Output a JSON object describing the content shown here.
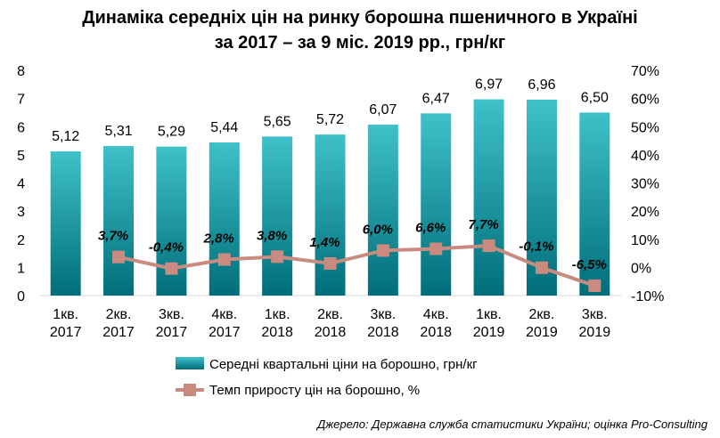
{
  "title_line1": "Динаміка середніх цін на ринку борошна пшеничного в Україні",
  "title_line2": "за 2017 – за 9 міс. 2019 рр., грн/кг",
  "source": "Джерело: Державна служба статистики України; оцінка Pro-Consulting",
  "colors": {
    "bar_top": "#3fc1c9",
    "bar_bottom": "#006e7a",
    "line": "#c98a80",
    "marker": "#c98a80"
  },
  "chart_data": {
    "type": "bar",
    "categories": [
      "1кв. 2017",
      "2кв. 2017",
      "3кв. 2017",
      "4кв. 2017",
      "1кв. 2018",
      "2кв. 2018",
      "3кв. 2018",
      "4кв. 2018",
      "1кв. 2019",
      "2кв. 2019",
      "3кв. 2019"
    ],
    "category_lines": [
      [
        "1кв.",
        "2017"
      ],
      [
        "2кв.",
        "2017"
      ],
      [
        "3кв.",
        "2017"
      ],
      [
        "4кв.",
        "2017"
      ],
      [
        "1кв.",
        "2018"
      ],
      [
        "2кв.",
        "2018"
      ],
      [
        "3кв.",
        "2018"
      ],
      [
        "4кв.",
        "2018"
      ],
      [
        "1кв.",
        "2019"
      ],
      [
        "2кв.",
        "2019"
      ],
      [
        "3кв.",
        "2019"
      ]
    ],
    "series": [
      {
        "name": "Середні квартальні ціни на борошно, грн/кг",
        "type": "bar",
        "axis": "left",
        "values": [
          5.12,
          5.31,
          5.29,
          5.44,
          5.65,
          5.72,
          6.07,
          6.47,
          6.97,
          6.96,
          6.5
        ],
        "labels": [
          "5,12",
          "5,31",
          "5,29",
          "5,44",
          "5,65",
          "5,72",
          "6,07",
          "6,47",
          "6,97",
          "6,96",
          "6,50"
        ]
      },
      {
        "name": "Темп приросту цін на борошно, %",
        "type": "line",
        "axis": "right",
        "values": [
          null,
          3.7,
          -0.4,
          2.8,
          3.8,
          1.4,
          6.0,
          6.6,
          7.7,
          -0.1,
          -6.5
        ],
        "labels": [
          "",
          "3,7%",
          "-0,4%",
          "2,8%",
          "3,8%",
          "1,4%",
          "6,0%",
          "6,6%",
          "7,7%",
          "-0,1%",
          "-6,5%"
        ]
      }
    ],
    "y_left": {
      "min": 0,
      "max": 8,
      "ticks": [
        "0",
        "1",
        "2",
        "3",
        "4",
        "5",
        "6",
        "7",
        "8"
      ]
    },
    "y_right": {
      "min": -10,
      "max": 70,
      "ticks": [
        "-10%",
        "0%",
        "10%",
        "20%",
        "30%",
        "40%",
        "50%",
        "60%",
        "70%"
      ]
    },
    "grid": false,
    "legend_position": "bottom"
  }
}
